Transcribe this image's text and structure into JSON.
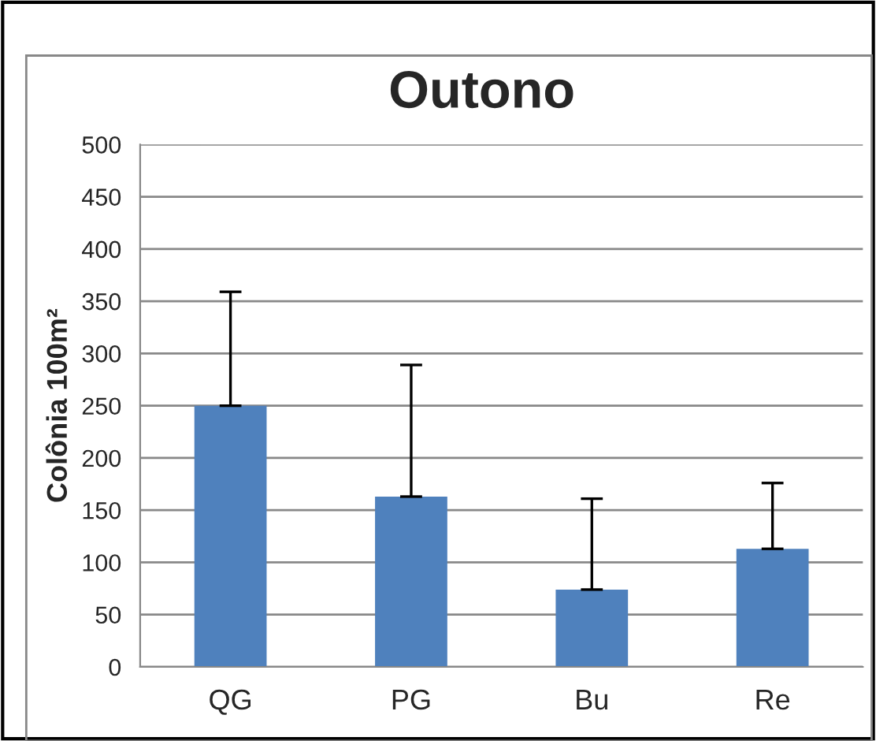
{
  "chart_data": {
    "type": "bar",
    "title": "Outono",
    "ylabel": "Colônia 100m²",
    "categories": [
      "QG",
      "PG",
      "Bu",
      "Re"
    ],
    "values": [
      250,
      163,
      74,
      113
    ],
    "errors": [
      [
        250,
        359
      ],
      [
        163,
        289
      ],
      [
        74,
        161
      ],
      [
        113,
        176
      ]
    ],
    "color": "#4f81bd",
    "ylim": [
      0,
      500
    ],
    "yticks": [
      0,
      50,
      100,
      150,
      200,
      250,
      300,
      350,
      400,
      450,
      500
    ],
    "grid": "y"
  }
}
